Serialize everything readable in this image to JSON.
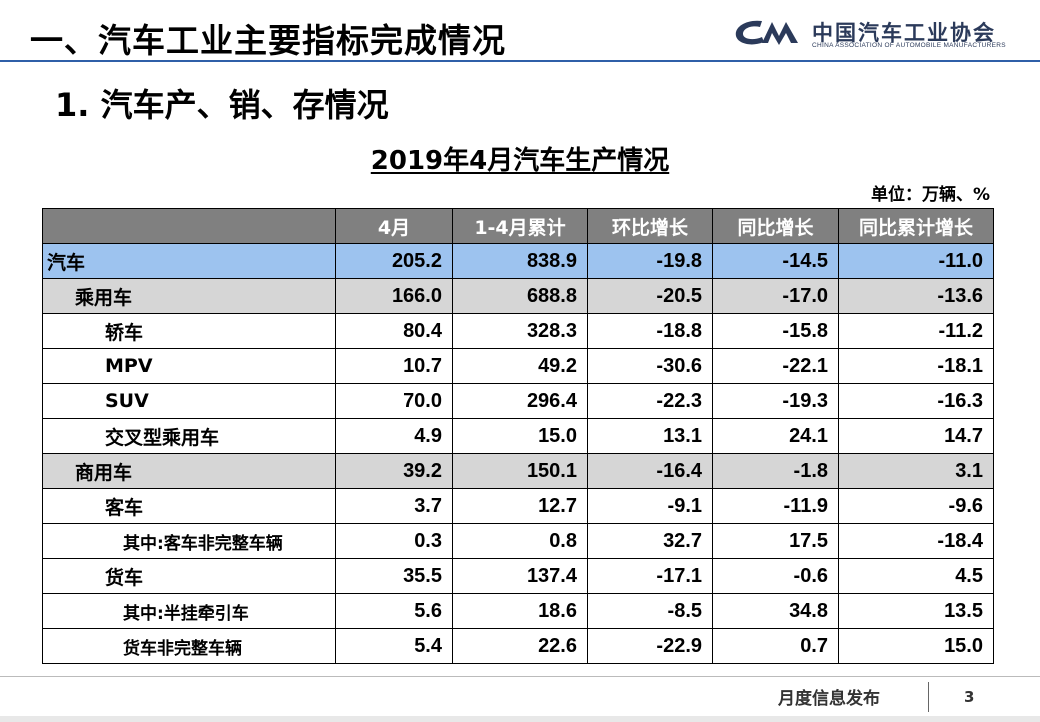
{
  "header": {
    "title": "一、汽车工业主要指标完成情况",
    "logo_cn": "中国汽车工业协会",
    "logo_en": "CHINA ASSOCIATION OF AUTOMOBILE MANUFACTURERS"
  },
  "section_title": "1. 汽车产、销、存情况",
  "table": {
    "title": "2019年4月汽车生产情况",
    "unit": "单位：万辆、%",
    "columns": [
      "",
      "4月",
      "1-4月累计",
      "环比增长",
      "同比增长",
      "同比累计增长"
    ],
    "rows": [
      {
        "name": "汽车",
        "level": 0,
        "values": [
          "205.2",
          "838.9",
          "-19.8",
          "-14.5",
          "-11.0"
        ]
      },
      {
        "name": "乘用车",
        "level": 1,
        "values": [
          "166.0",
          "688.8",
          "-20.5",
          "-17.0",
          "-13.6"
        ]
      },
      {
        "name": "轿车",
        "level": 2,
        "values": [
          "80.4",
          "328.3",
          "-18.8",
          "-15.8",
          "-11.2"
        ]
      },
      {
        "name": "MPV",
        "level": 2,
        "values": [
          "10.7",
          "49.2",
          "-30.6",
          "-22.1",
          "-18.1"
        ]
      },
      {
        "name": "SUV",
        "level": 2,
        "values": [
          "70.0",
          "296.4",
          "-22.3",
          "-19.3",
          "-16.3"
        ]
      },
      {
        "name": "交叉型乘用车",
        "level": 2,
        "values": [
          "4.9",
          "15.0",
          "13.1",
          "24.1",
          "14.7"
        ]
      },
      {
        "name": "商用车",
        "level": 1,
        "values": [
          "39.2",
          "150.1",
          "-16.4",
          "-1.8",
          "3.1"
        ]
      },
      {
        "name": "客车",
        "level": 2,
        "values": [
          "3.7",
          "12.7",
          "-9.1",
          "-11.9",
          "-9.6"
        ]
      },
      {
        "name": "其中:客车非完整车辆",
        "level": 3,
        "values": [
          "0.3",
          "0.8",
          "32.7",
          "17.5",
          "-18.4"
        ]
      },
      {
        "name": "货车",
        "level": 2,
        "values": [
          "35.5",
          "137.4",
          "-17.1",
          "-0.6",
          "4.5"
        ]
      },
      {
        "name": "其中:半挂牵引车",
        "level": 3,
        "values": [
          "5.6",
          "18.6",
          "-8.5",
          "34.8",
          "13.5"
        ]
      },
      {
        "name": "货车非完整车辆",
        "level": 3,
        "values": [
          "5.4",
          "22.6",
          "-22.9",
          "0.7",
          "15.0"
        ]
      }
    ]
  },
  "footer": {
    "label": "月度信息发布",
    "page": "3"
  },
  "colors": {
    "header_rule": "#2f5fa8",
    "row_total": "#9dc3ef",
    "row_category": "#d6d6d6",
    "column_header": "#808080"
  }
}
